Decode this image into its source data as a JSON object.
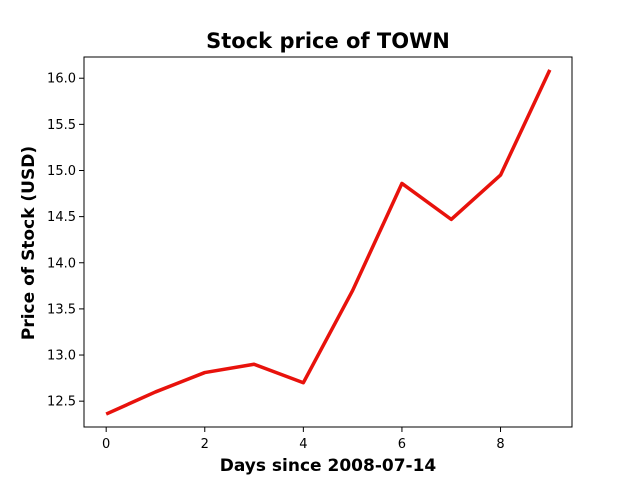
{
  "chart_data": {
    "type": "line",
    "title": "Stock price of TOWN",
    "xlabel": "Days since 2008-07-14",
    "ylabel": "Price of Stock (USD)",
    "x": [
      0,
      1,
      2,
      3,
      4,
      5,
      6,
      7,
      8,
      9
    ],
    "series": [
      {
        "color": "#e8120c",
        "values": [
          12.36,
          12.6,
          12.81,
          12.9,
          12.7,
          13.7,
          14.86,
          14.47,
          14.95,
          16.09
        ]
      }
    ],
    "xlim": [
      -0.45,
      9.45
    ],
    "ylim": [
      12.22,
      16.23
    ],
    "xticks": [
      0,
      2,
      4,
      6,
      8
    ],
    "xtick_labels": [
      "0",
      "2",
      "4",
      "6",
      "8"
    ],
    "yticks": [
      12.5,
      13.0,
      13.5,
      14.0,
      14.5,
      15.0,
      15.5,
      16.0
    ],
    "ytick_labels": [
      "12.5",
      "13.0",
      "13.5",
      "14.0",
      "14.5",
      "15.0",
      "15.5",
      "16.0"
    ],
    "grid": false,
    "legend": "none"
  }
}
